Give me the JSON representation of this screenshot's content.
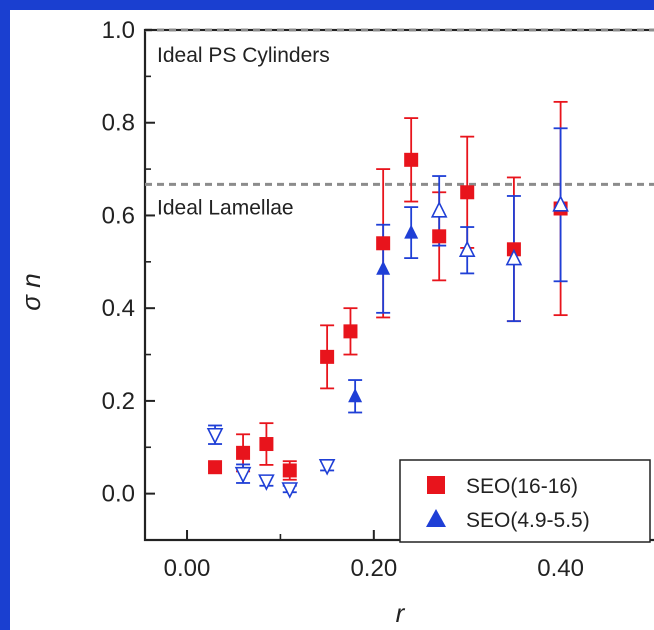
{
  "chart_data": {
    "type": "scatter",
    "title": "",
    "xlabel": "r",
    "ylabel": "σ n",
    "xlim": [
      -0.045,
      0.5
    ],
    "ylim": [
      -0.1,
      1.0
    ],
    "x_ticks": [
      0.0,
      0.2,
      0.4
    ],
    "x_tick_labels": [
      "0.00",
      "0.20",
      "0.40"
    ],
    "y_ticks": [
      0.0,
      0.2,
      0.4,
      0.6,
      0.8,
      1.0
    ],
    "y_tick_labels": [
      "0.0",
      "0.2",
      "0.4",
      "0.6",
      "0.8",
      "1.0"
    ],
    "grid": false,
    "legend_position": "bottom-right",
    "reference_lines": [
      {
        "label": "Ideal PS Cylinders",
        "y": 1.0,
        "color": "#8c8c8c"
      },
      {
        "label": "Ideal Lamellae",
        "y": 0.667,
        "color": "#8c8c8c"
      }
    ],
    "series": [
      {
        "name": "SEO(16-16)",
        "color": "#e8141c",
        "marker": "square",
        "points": [
          {
            "x": 0.03,
            "y": 0.057,
            "err": 0.0
          },
          {
            "x": 0.06,
            "y": 0.088,
            "err": 0.04
          },
          {
            "x": 0.085,
            "y": 0.107,
            "err": 0.045
          },
          {
            "x": 0.11,
            "y": 0.05,
            "err": 0.02
          },
          {
            "x": 0.15,
            "y": 0.295,
            "err": 0.068
          },
          {
            "x": 0.175,
            "y": 0.35,
            "err": 0.05
          },
          {
            "x": 0.21,
            "y": 0.54,
            "err": 0.16
          },
          {
            "x": 0.24,
            "y": 0.72,
            "err": 0.09
          },
          {
            "x": 0.27,
            "y": 0.555,
            "err": 0.095
          },
          {
            "x": 0.3,
            "y": 0.65,
            "err": 0.12
          },
          {
            "x": 0.35,
            "y": 0.527,
            "err": 0.155
          },
          {
            "x": 0.4,
            "y": 0.615,
            "err": 0.23
          }
        ]
      },
      {
        "name": "SEO(4.9-5.5)",
        "color": "#1f3fd6",
        "marker": "triangle-up",
        "points": [
          {
            "x": 0.18,
            "y": 0.21,
            "err": 0.035
          },
          {
            "x": 0.21,
            "y": 0.485,
            "err": 0.095
          },
          {
            "x": 0.24,
            "y": 0.563,
            "err": 0.055
          }
        ]
      },
      {
        "name": "",
        "color": "#1f3fd6",
        "marker": "triangle-up-open",
        "points": [
          {
            "x": 0.27,
            "y": 0.61,
            "err": 0.075
          },
          {
            "x": 0.3,
            "y": 0.525,
            "err": 0.05
          },
          {
            "x": 0.35,
            "y": 0.507,
            "err": 0.135
          },
          {
            "x": 0.4,
            "y": 0.623,
            "err": 0.165
          }
        ]
      },
      {
        "name": "",
        "color": "#1f3fd6",
        "marker": "triangle-down-open",
        "points": [
          {
            "x": 0.03,
            "y": 0.127,
            "err": 0.02
          },
          {
            "x": 0.06,
            "y": 0.043,
            "err": 0.02
          },
          {
            "x": 0.085,
            "y": 0.027,
            "err": 0.01
          },
          {
            "x": 0.11,
            "y": 0.01,
            "err": 0.007
          },
          {
            "x": 0.15,
            "y": 0.06,
            "err": 0.01
          }
        ]
      }
    ]
  }
}
